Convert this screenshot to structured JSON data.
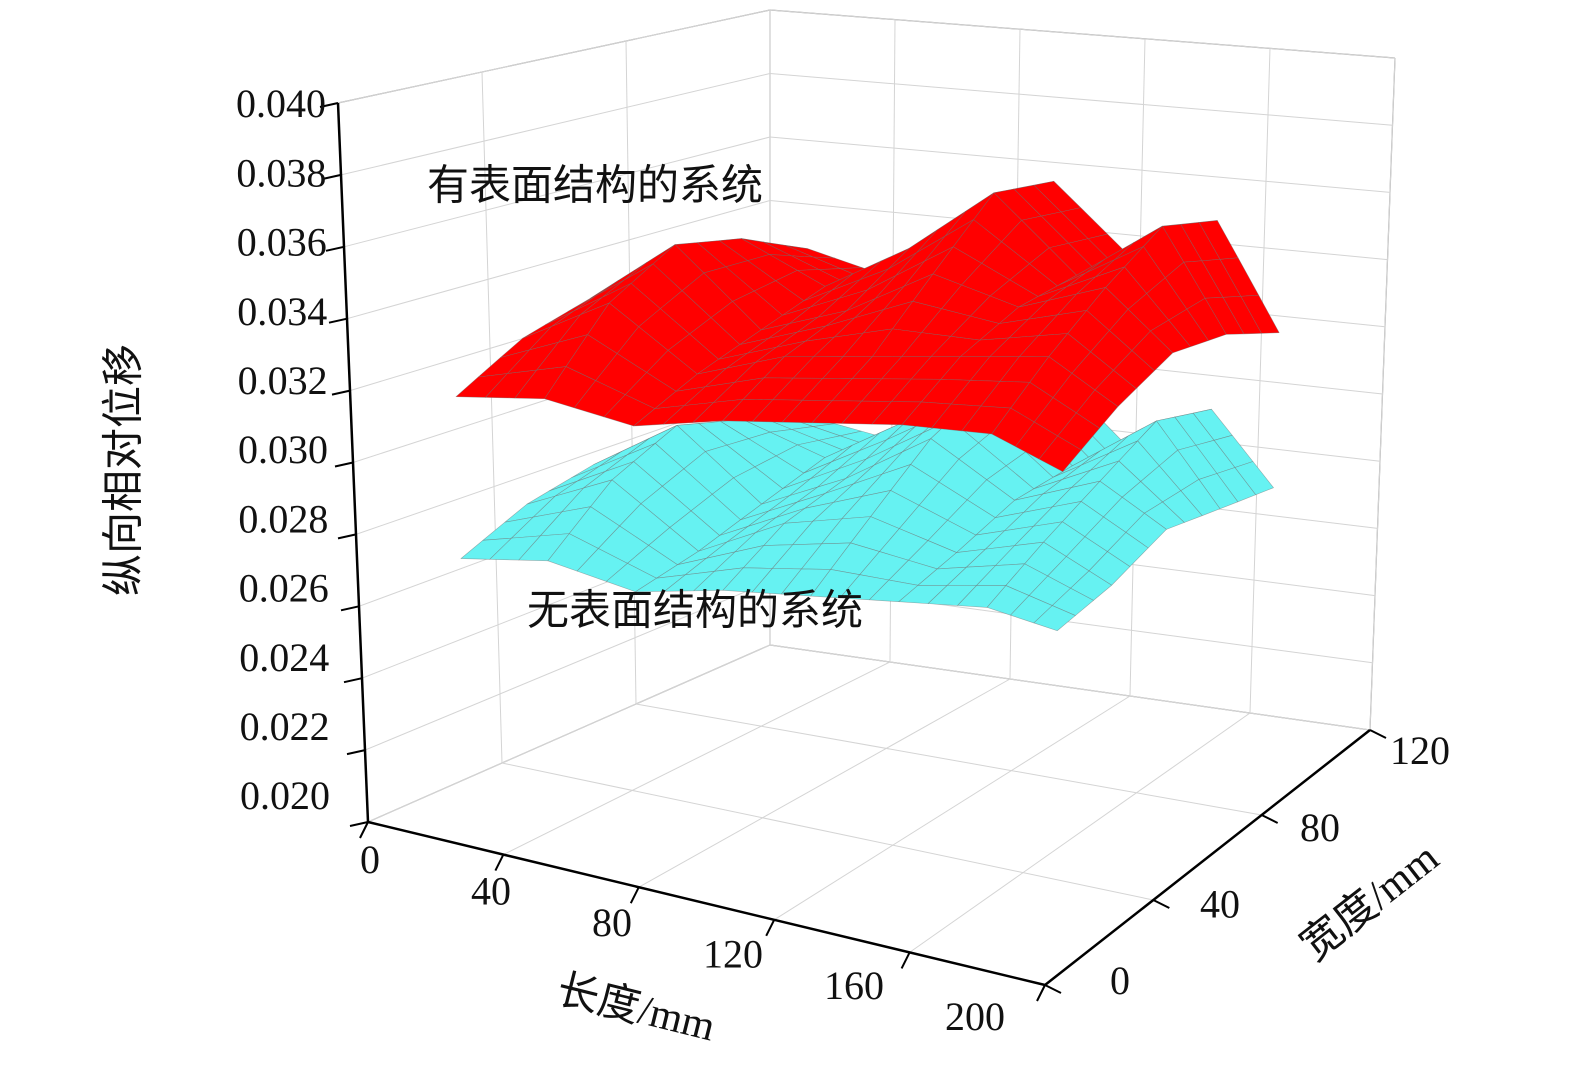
{
  "chart_data": {
    "type": "surface3d",
    "xlabel": "长度/mm",
    "ylabel": "宽度/mm",
    "zlabel": "纵向相对位移",
    "xlim": [
      0,
      200
    ],
    "xticks": [
      0,
      40,
      80,
      120,
      160,
      200
    ],
    "ylim": [
      0,
      120
    ],
    "yticks": [
      0,
      40,
      80,
      120
    ],
    "zlim": [
      0.02,
      0.04
    ],
    "zticks": [
      {
        "value": 0.02,
        "label": "0.020"
      },
      0.022,
      0.024,
      0.026,
      0.028,
      {
        "value": 0.03,
        "label": "0.030"
      },
      0.032,
      0.034,
      0.036,
      0.038,
      {
        "value": 0.04,
        "label": "0.040"
      }
    ],
    "grid": true,
    "underside_color": "#1e8a8a",
    "surface_x": [
      30,
      55,
      80,
      105,
      130,
      155,
      180,
      200
    ],
    "surface_y": [
      0,
      20,
      40,
      60,
      80
    ],
    "series": [
      {
        "name": "有表面结构的系统",
        "color": "#ff0000",
        "values": [
          [
            0.0325,
            0.033,
            0.0328,
            0.0335,
            0.034,
            0.0345,
            0.0348,
            0.0342
          ],
          [
            0.0335,
            0.035,
            0.0335,
            0.0345,
            0.035,
            0.0355,
            0.036,
            0.035
          ],
          [
            0.034,
            0.036,
            0.034,
            0.035,
            0.0365,
            0.036,
            0.037,
            0.0355
          ],
          [
            0.0338,
            0.0355,
            0.0345,
            0.036,
            0.038,
            0.036,
            0.0378,
            0.035
          ],
          [
            0.033,
            0.0345,
            0.034,
            0.0355,
            0.0375,
            0.0355,
            0.037,
            0.034
          ]
        ]
      },
      {
        "name": "无表面结构的系统",
        "color": "#66f2f2",
        "values": [
          [
            0.028,
            0.0285,
            0.0282,
            0.0288,
            0.0292,
            0.0296,
            0.03,
            0.0298
          ],
          [
            0.0288,
            0.03,
            0.0285,
            0.0298,
            0.0305,
            0.03,
            0.0308,
            0.03
          ],
          [
            0.0292,
            0.0308,
            0.029,
            0.0302,
            0.0318,
            0.0305,
            0.0315,
            0.0305
          ],
          [
            0.029,
            0.0302,
            0.0295,
            0.031,
            0.0325,
            0.0305,
            0.0322,
            0.03
          ],
          [
            0.0285,
            0.0295,
            0.0292,
            0.0305,
            0.032,
            0.03,
            0.0315,
            0.0295
          ]
        ]
      }
    ]
  }
}
